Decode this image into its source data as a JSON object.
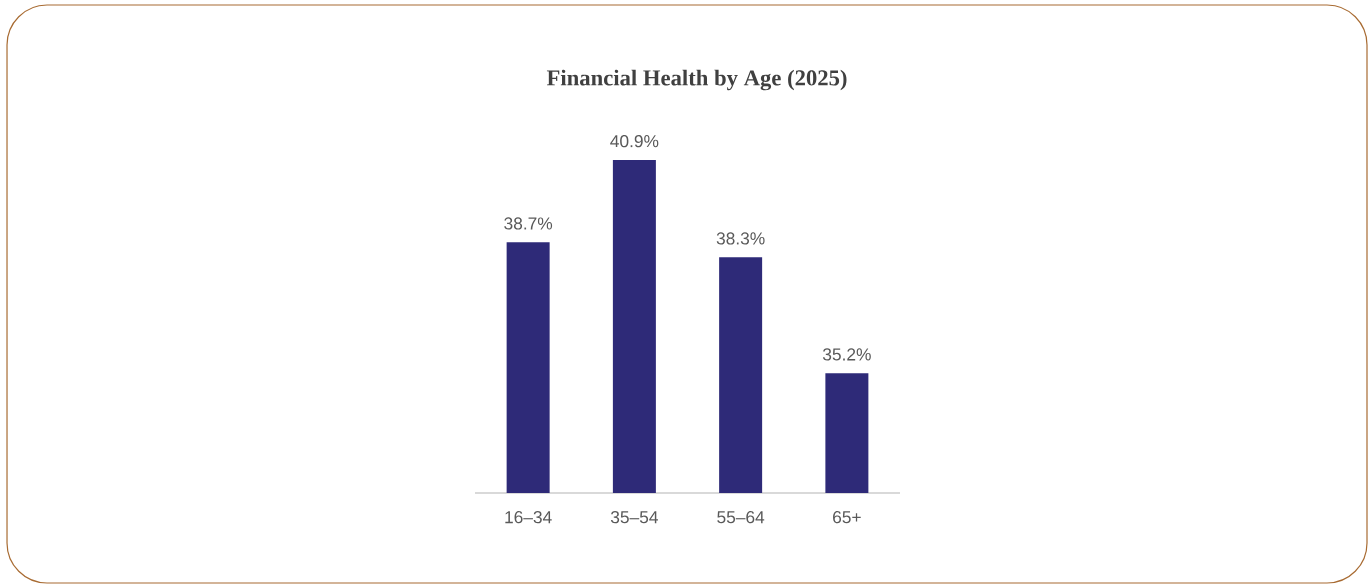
{
  "chart_data": {
    "type": "bar",
    "title": "Financial Health by Age (2025)",
    "categories": [
      "16–34",
      "35–54",
      "55–64",
      "65+"
    ],
    "values": [
      38.7,
      40.9,
      38.3,
      35.2
    ],
    "value_labels": [
      "38.7%",
      "40.9%",
      "38.3%",
      "35.2%"
    ],
    "color": "#2e2a78",
    "ylim": [
      32,
      40.9
    ]
  }
}
